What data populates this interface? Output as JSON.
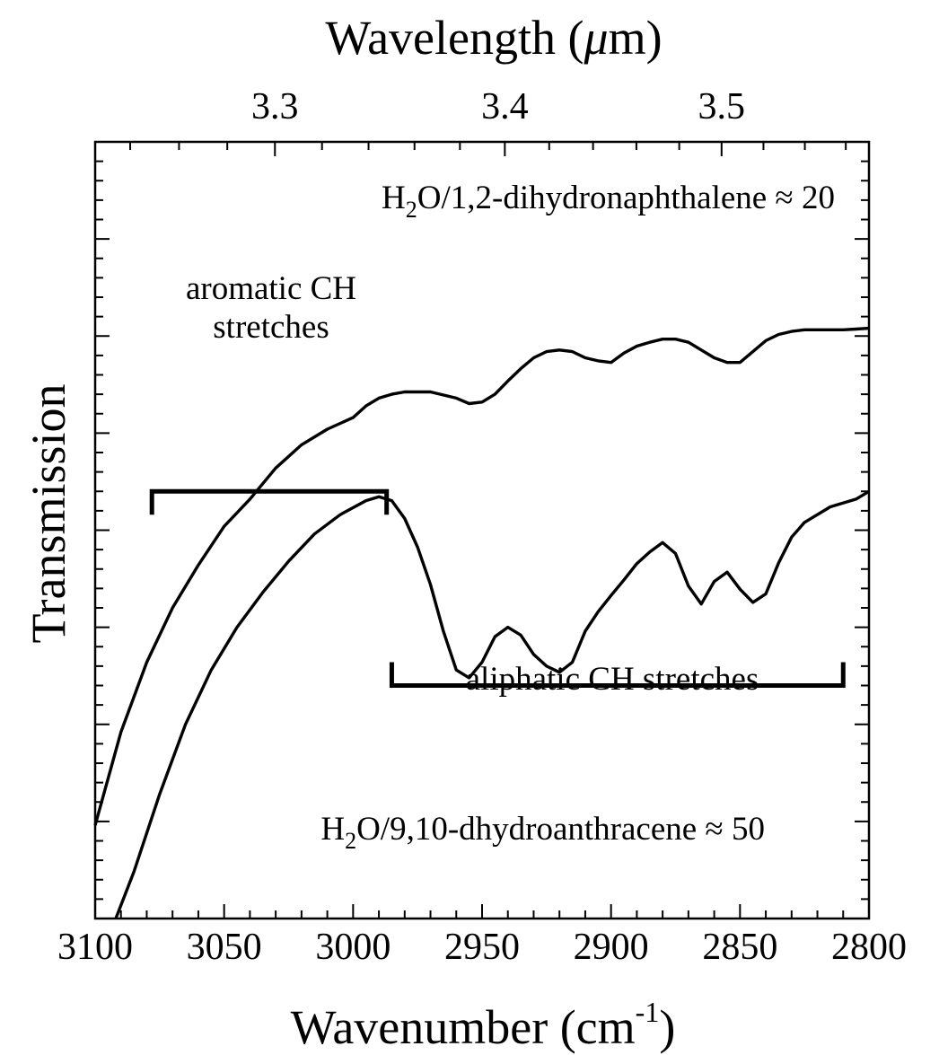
{
  "chart_data": {
    "type": "line",
    "xlabel": "Wavenumber (cm",
    "xlabel_sup": "-1",
    "xlabel_end": ")",
    "x2label": "Wavelength (",
    "x2label_mu": "μ",
    "x2label_end": "m)",
    "ylabel": "Transmission",
    "xlim": [
      3100,
      2800
    ],
    "ylim": [
      0,
      1
    ],
    "x_ticks": [
      3100,
      3050,
      3000,
      2950,
      2900,
      2850,
      2800
    ],
    "x_tick_labels": [
      "3100",
      "3050",
      "3000",
      "2950",
      "2900",
      "2850",
      "2800"
    ],
    "x2_ticks": [
      3.3,
      3.4,
      3.5
    ],
    "x2_tick_labels": [
      "3.3",
      "3.4",
      "3.5"
    ],
    "grid": false,
    "series": [
      {
        "label_pre": "H",
        "label_sub": "2",
        "label_post": "O/1,2-dihydronaphthalene ≈ 20",
        "x": [
          3100,
          3090,
          3080,
          3070,
          3060,
          3050,
          3040,
          3030,
          3020,
          3010,
          3000,
          2995,
          2990,
          2985,
          2980,
          2970,
          2960,
          2955,
          2950,
          2945,
          2940,
          2935,
          2930,
          2925,
          2920,
          2915,
          2910,
          2905,
          2900,
          2895,
          2890,
          2885,
          2880,
          2875,
          2870,
          2865,
          2860,
          2855,
          2850,
          2845,
          2840,
          2835,
          2830,
          2825,
          2820,
          2815,
          2810,
          2805,
          2800
        ],
        "y": [
          0.12,
          0.24,
          0.33,
          0.4,
          0.455,
          0.505,
          0.54,
          0.58,
          0.61,
          0.63,
          0.645,
          0.66,
          0.67,
          0.675,
          0.678,
          0.678,
          0.67,
          0.663,
          0.665,
          0.675,
          0.692,
          0.708,
          0.722,
          0.73,
          0.732,
          0.73,
          0.722,
          0.718,
          0.716,
          0.728,
          0.737,
          0.742,
          0.746,
          0.746,
          0.742,
          0.732,
          0.722,
          0.716,
          0.716,
          0.73,
          0.744,
          0.752,
          0.756,
          0.758,
          0.758,
          0.758,
          0.758,
          0.759,
          0.76
        ]
      },
      {
        "label_pre": "H",
        "label_sub": "2",
        "label_post": "O/9,10-dhydroanthracene ≈ 50",
        "x": [
          3092,
          3085,
          3075,
          3065,
          3055,
          3045,
          3035,
          3025,
          3015,
          3005,
          2995,
          2990,
          2985,
          2980,
          2975,
          2970,
          2965,
          2960,
          2955,
          2950,
          2945,
          2940,
          2935,
          2930,
          2925,
          2920,
          2915,
          2910,
          2905,
          2900,
          2895,
          2890,
          2885,
          2880,
          2875,
          2870,
          2865,
          2860,
          2855,
          2850,
          2845,
          2840,
          2835,
          2830,
          2825,
          2815,
          2805,
          2800
        ],
        "y": [
          0.0,
          0.06,
          0.16,
          0.25,
          0.32,
          0.375,
          0.42,
          0.46,
          0.495,
          0.52,
          0.538,
          0.543,
          0.538,
          0.515,
          0.478,
          0.43,
          0.37,
          0.32,
          0.31,
          0.33,
          0.363,
          0.375,
          0.365,
          0.34,
          0.325,
          0.317,
          0.33,
          0.37,
          0.395,
          0.416,
          0.436,
          0.457,
          0.472,
          0.484,
          0.47,
          0.428,
          0.405,
          0.434,
          0.446,
          0.424,
          0.407,
          0.418,
          0.458,
          0.491,
          0.51,
          0.53,
          0.54,
          0.55
        ]
      }
    ],
    "annotations": [
      {
        "line1": "aromatic CH",
        "line2": "stretches",
        "x_from": 3078,
        "x_to": 2987,
        "y": 0.55
      },
      {
        "text": "aliphatic CH stretches",
        "x_from": 2985,
        "x_to": 2810,
        "y": 0.3
      }
    ]
  }
}
